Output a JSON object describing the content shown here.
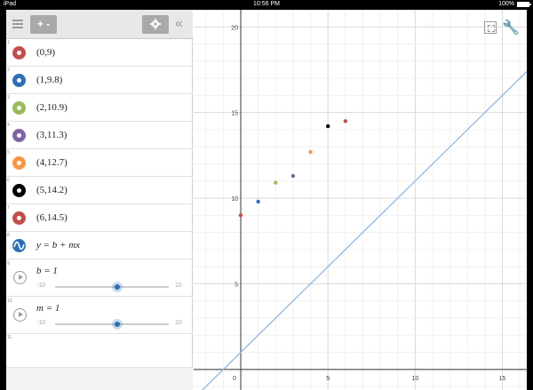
{
  "statusbar": {
    "device": "iPad",
    "time": "10:56 PM",
    "battery": "100%"
  },
  "toolbar": {
    "add_label": "+ -"
  },
  "expressions": [
    {
      "num": "1",
      "text": "(0,9)",
      "color": "#c0504d"
    },
    {
      "num": "2",
      "text": "(1,9.8)",
      "color": "#2d70b3"
    },
    {
      "num": "3",
      "text": "(2,10.9)",
      "color": "#9bbb59"
    },
    {
      "num": "4",
      "text": "(3,11.3)",
      "color": "#8064a2"
    },
    {
      "num": "5",
      "text": "(4,12.7)",
      "color": "#f79646"
    },
    {
      "num": "6",
      "text": "(5,14.2)",
      "color": "#000000"
    },
    {
      "num": "7",
      "text": "(6,14.5)",
      "color": "#c0504d"
    }
  ],
  "equation": {
    "num": "8",
    "text": "y = b + mx",
    "color": "#2d70b3"
  },
  "sliders": [
    {
      "num": "9",
      "label": "b = 1",
      "min": "-10",
      "max": "10",
      "value": 1
    },
    {
      "num": "10",
      "label": "m = 1",
      "min": "-10",
      "max": "10",
      "value": 1
    }
  ],
  "empty_num": "11",
  "graph": {
    "x_ticks": [
      "0",
      "5",
      "10",
      "15"
    ],
    "y_ticks": [
      "5",
      "10",
      "15",
      "20"
    ],
    "xrange": [
      -2.7,
      16.4
    ],
    "yrange": [
      -1.2,
      21.0
    ],
    "points": [
      {
        "x": 0,
        "y": 9,
        "color": "#c0504d"
      },
      {
        "x": 1,
        "y": 9.8,
        "color": "#2d70b3"
      },
      {
        "x": 2,
        "y": 10.9,
        "color": "#9bbb59"
      },
      {
        "x": 3,
        "y": 11.3,
        "color": "#8064a2"
      },
      {
        "x": 4,
        "y": 12.7,
        "color": "#f79646"
      },
      {
        "x": 5,
        "y": 14.2,
        "color": "#000000"
      },
      {
        "x": 6,
        "y": 14.5,
        "color": "#c0504d"
      }
    ],
    "line": {
      "b": 1,
      "m": 1,
      "color": "#8fb8e0"
    }
  }
}
